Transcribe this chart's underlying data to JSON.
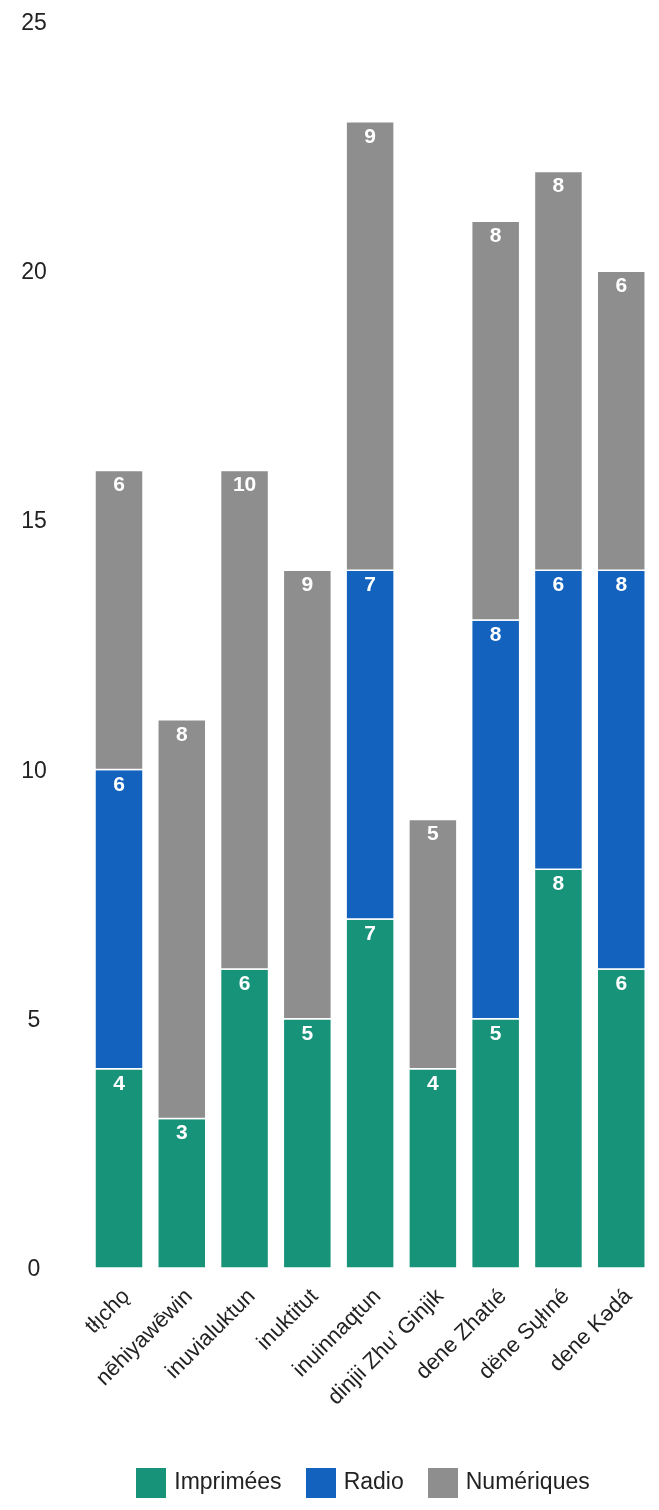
{
  "chart_data": {
    "type": "bar",
    "stacked": true,
    "categories": [
      "tłı̨chǫ",
      "nēhiyawēwin",
      "inuvialuktun",
      "inuktitut",
      "inuinnaqtun",
      "dinjii Zhu’ Ginjik",
      "dene Zhatıé",
      "dëne Sųłıné",
      "dene Kədá"
    ],
    "series": [
      {
        "name": "Imprimées",
        "color": "#17937a",
        "values": [
          4,
          3,
          6,
          5,
          7,
          4,
          5,
          8,
          6
        ]
      },
      {
        "name": "Radio",
        "color": "#1262be",
        "values": [
          6,
          null,
          null,
          null,
          7,
          null,
          8,
          6,
          8
        ]
      },
      {
        "name": "Numériques",
        "color": "#8e8e8e",
        "values": [
          6,
          8,
          10,
          9,
          9,
          5,
          8,
          8,
          6
        ]
      }
    ],
    "ylim": [
      0,
      25
    ],
    "yticks": [
      0,
      5,
      10,
      15,
      20,
      25
    ],
    "data_labels": true,
    "legend": "bottom"
  }
}
